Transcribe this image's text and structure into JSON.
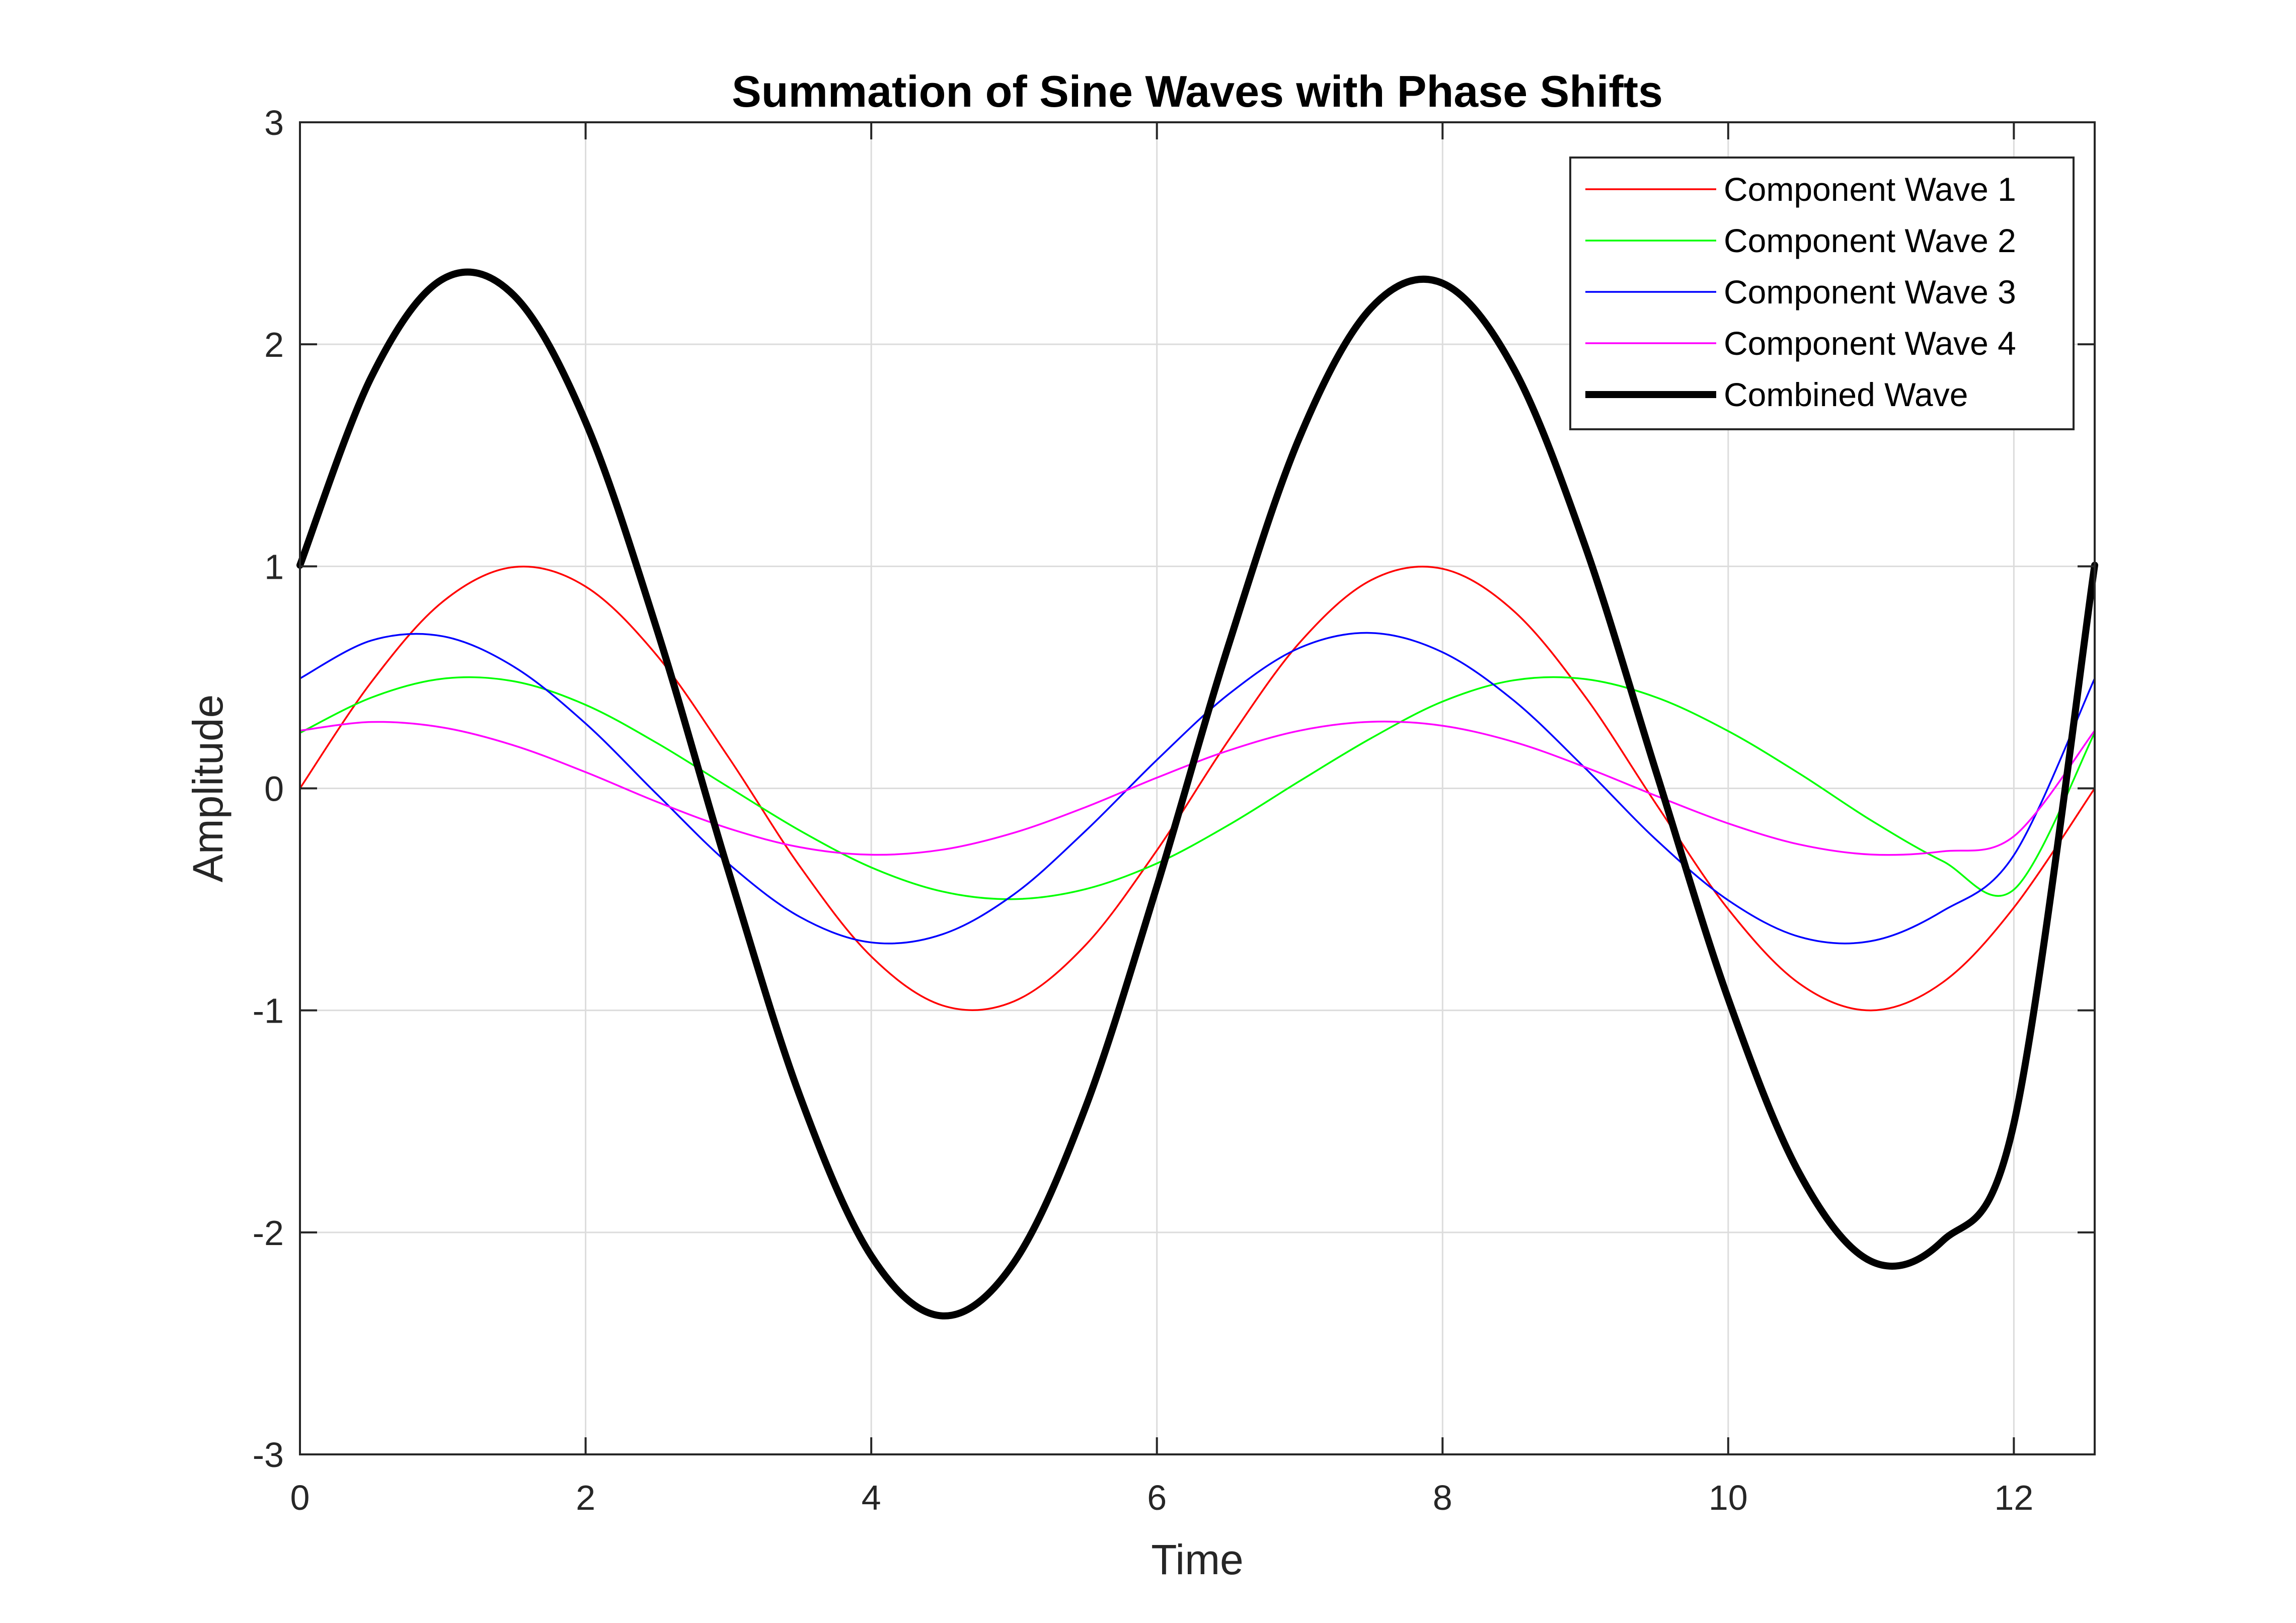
{
  "chart_data": {
    "type": "line",
    "title": "Summation of Sine Waves with Phase Shifts",
    "xlabel": "Time",
    "ylabel": "Amplitude",
    "xlim": [
      0,
      12.566
    ],
    "ylim": [
      -3,
      3
    ],
    "xticks": [
      0,
      2,
      4,
      6,
      8,
      10,
      12
    ],
    "yticks": [
      -3,
      -2,
      -1,
      0,
      1,
      2,
      3
    ],
    "grid": true,
    "legend_position": "top-right",
    "x": [
      0,
      0.5,
      1,
      1.5,
      2,
      2.5,
      3,
      3.5,
      4,
      4.5,
      5,
      5.5,
      6,
      6.5,
      7,
      7.5,
      8,
      8.5,
      9,
      9.5,
      10,
      10.5,
      11,
      11.5,
      12,
      12.566
    ],
    "series": [
      {
        "name": "Component Wave 1",
        "color": "#ff0000",
        "line_weight": "thin",
        "values": [
          0,
          0.479,
          0.841,
          0.997,
          0.909,
          0.598,
          0.141,
          -0.351,
          -0.757,
          -0.978,
          -0.959,
          -0.706,
          -0.279,
          0.215,
          0.657,
          0.938,
          0.989,
          0.798,
          0.412,
          -0.075,
          -0.544,
          -0.88,
          -1.0,
          -0.875,
          -0.537,
          0
        ]
      },
      {
        "name": "Component Wave 2",
        "color": "#00ff00",
        "line_weight": "thin",
        "values": [
          0.25,
          0.409,
          0.494,
          0.482,
          0.376,
          0.204,
          0.006,
          -0.19,
          -0.356,
          -0.465,
          -0.499,
          -0.454,
          -0.338,
          -0.166,
          0.033,
          0.226,
          0.391,
          0.487,
          0.492,
          0.409,
          0.258,
          0.066,
          -0.144,
          -0.327,
          -0.456,
          0.25
        ]
      },
      {
        "name": "Component Wave 3",
        "color": "#0000ff",
        "line_weight": "thin",
        "values": [
          0.495,
          0.666,
          0.685,
          0.547,
          0.292,
          -0.027,
          -0.339,
          -0.579,
          -0.694,
          -0.657,
          -0.477,
          -0.192,
          0.128,
          0.423,
          0.633,
          0.7,
          0.613,
          0.395,
          0.09,
          -0.234,
          -0.504,
          -0.669,
          -0.688,
          -0.553,
          -0.301,
          0.495
        ]
      },
      {
        "name": "Component Wave 4",
        "color": "#ff00ff",
        "line_weight": "thin",
        "values": [
          0.26,
          0.299,
          0.274,
          0.193,
          0.073,
          -0.061,
          -0.18,
          -0.265,
          -0.299,
          -0.276,
          -0.2,
          -0.085,
          0.048,
          0.17,
          0.26,
          0.3,
          0.282,
          0.209,
          0.095,
          -0.035,
          -0.158,
          -0.253,
          -0.298,
          -0.284,
          -0.216,
          0.26
        ]
      },
      {
        "name": "Combined Wave",
        "color": "#000000",
        "line_weight": "thick",
        "values": [
          1.005,
          1.853,
          2.294,
          2.219,
          1.65,
          0.714,
          -0.372,
          -1.385,
          -2.106,
          -2.376,
          -2.135,
          -1.437,
          -0.441,
          0.642,
          1.583,
          2.164,
          2.275,
          1.889,
          1.089,
          0.065,
          -0.948,
          -1.736,
          -2.13,
          -2.039,
          -1.51,
          1.005
        ]
      }
    ]
  }
}
